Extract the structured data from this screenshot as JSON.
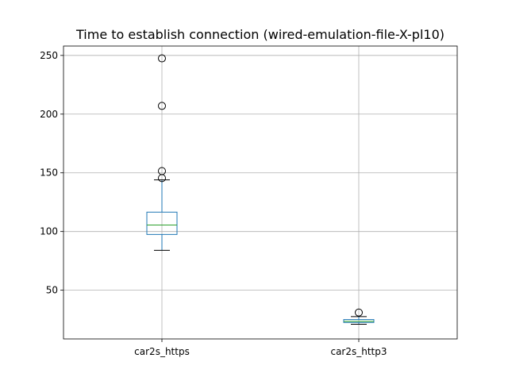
{
  "chart_data": {
    "type": "box",
    "title": "Time to establish connection (wired-emulation-file-X-pl10)",
    "categories": [
      "car2s_https",
      "car2s_http3"
    ],
    "series": [
      {
        "category": "car2s_https",
        "whisker_low": 84,
        "q1": 97.5,
        "median": 105.5,
        "q3": 116.5,
        "whisker_high": 144,
        "fliers": [
          145.5,
          151.5,
          207,
          247.5
        ]
      },
      {
        "category": "car2s_http3",
        "whisker_low": 21,
        "q1": 22.5,
        "median": 23.5,
        "q3": 25,
        "whisker_high": 27.5,
        "fliers": [
          31
        ]
      }
    ],
    "ylim": [
      8.5,
      258
    ],
    "yticks": [
      50,
      100,
      150,
      200,
      250
    ],
    "grid": true,
    "colors": {
      "box": "#1f77b4",
      "median": "#2ca02c",
      "cap": "#000000",
      "grid": "#b0b0b0"
    }
  }
}
